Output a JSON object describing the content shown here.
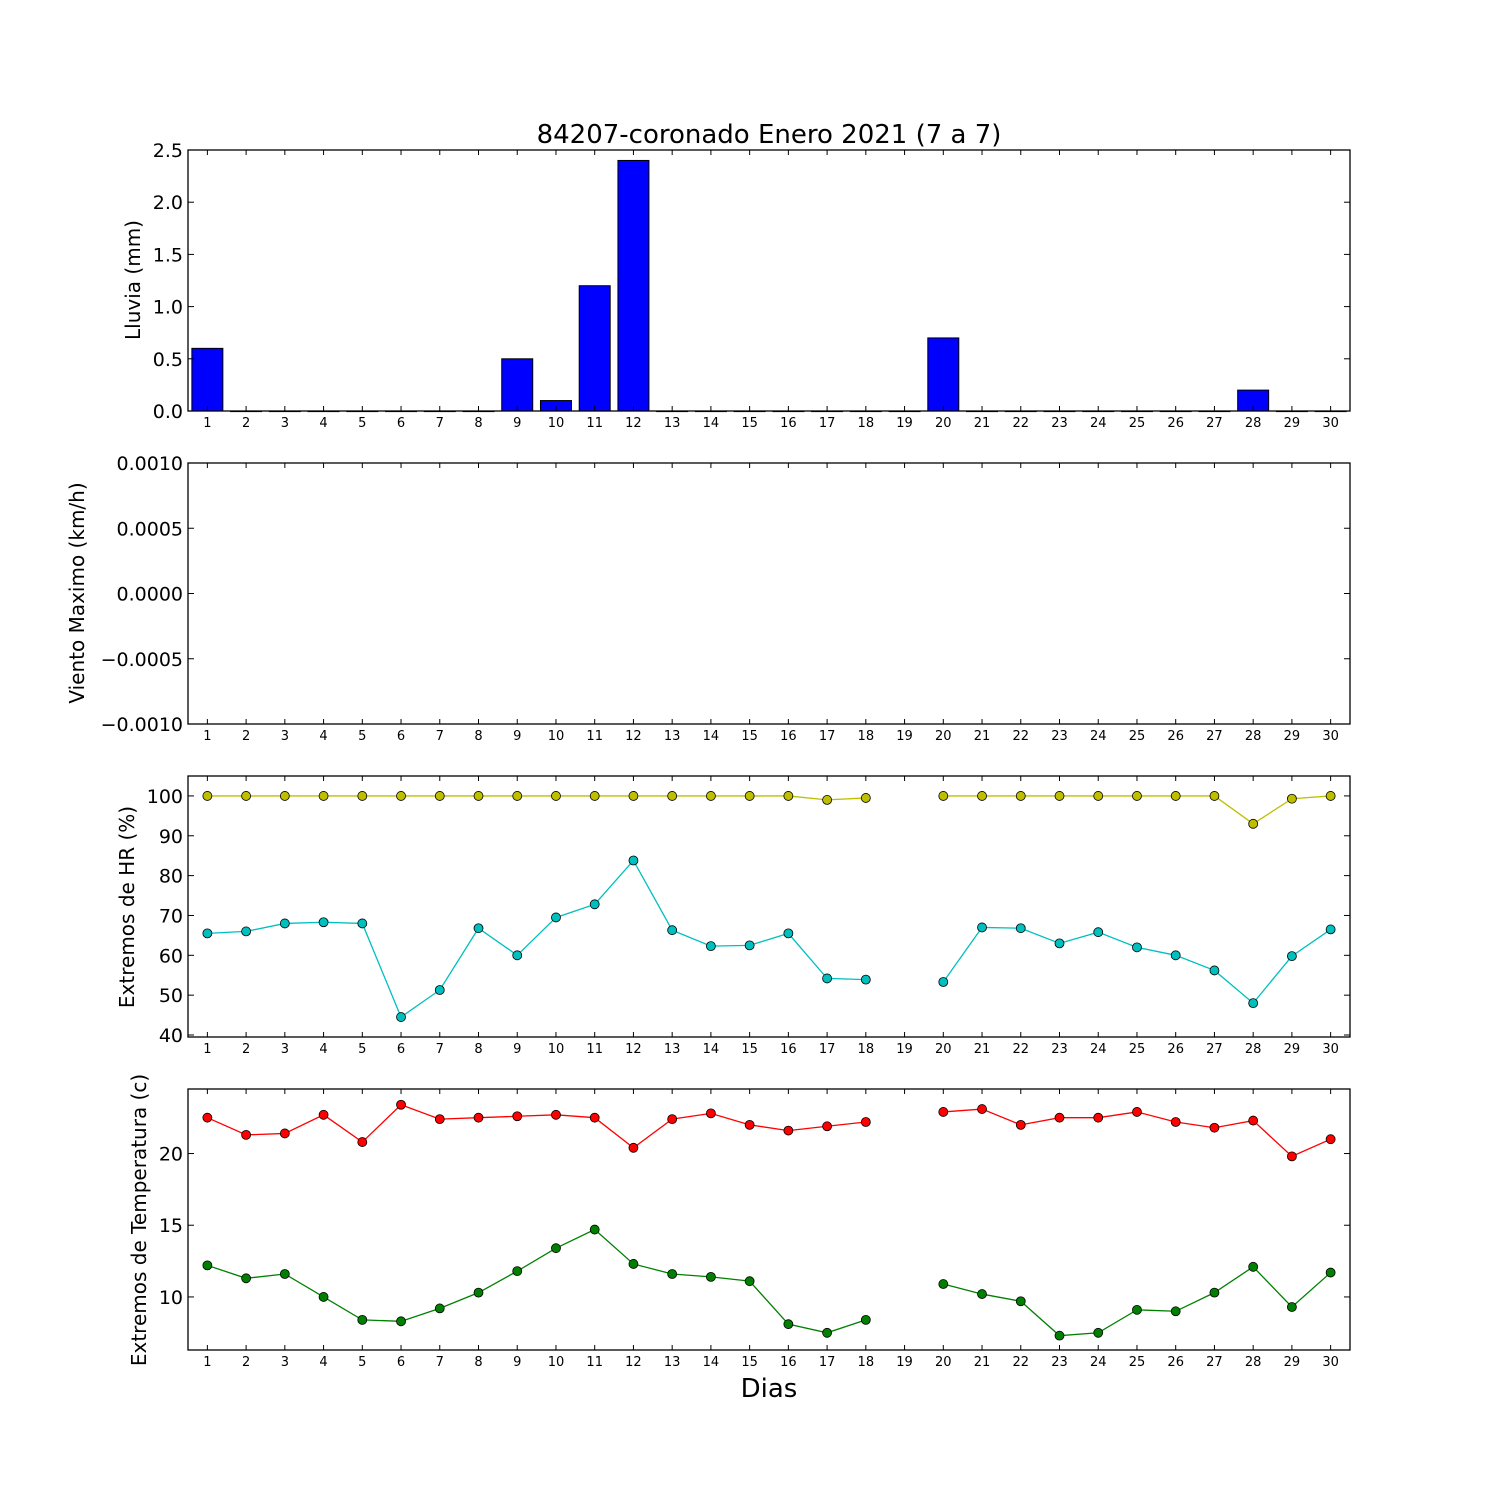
{
  "chart_data": [
    {
      "type": "bar",
      "title": "84207-coronado Enero 2021  (7 a 7)",
      "xlabel": "",
      "ylabel": "Lluvia (mm)",
      "categories": [
        "1",
        "2",
        "3",
        "4",
        "5",
        "6",
        "7",
        "8",
        "9",
        "10",
        "11",
        "12",
        "13",
        "14",
        "15",
        "16",
        "17",
        "18",
        "19",
        "20",
        "21",
        "22",
        "23",
        "24",
        "25",
        "26",
        "27",
        "28",
        "29",
        "30"
      ],
      "values": [
        0.6,
        0,
        0,
        0,
        0,
        0,
        0,
        0,
        0.5,
        0.1,
        1.2,
        2.4,
        0,
        0,
        0,
        0,
        0,
        0,
        0,
        0.7,
        0,
        0,
        0,
        0,
        0,
        0,
        0,
        0.2,
        0,
        0
      ],
      "ylim": [
        0,
        2.5
      ],
      "yticks": [
        "0.0",
        "0.5",
        "1.0",
        "1.5",
        "2.0",
        "2.5"
      ],
      "color": "#0000ff",
      "grid": false
    },
    {
      "type": "line",
      "title": "",
      "xlabel": "",
      "ylabel": "Viento Maximo (km/h)",
      "categories": [
        "1",
        "2",
        "3",
        "4",
        "5",
        "6",
        "7",
        "8",
        "9",
        "10",
        "11",
        "12",
        "13",
        "14",
        "15",
        "16",
        "17",
        "18",
        "19",
        "20",
        "21",
        "22",
        "23",
        "24",
        "25",
        "26",
        "27",
        "28",
        "29",
        "30"
      ],
      "series": [],
      "ylim": [
        -0.001,
        0.001
      ],
      "yticks": [
        "−0.0010",
        "−0.0005",
        "0.0000",
        "0.0005",
        "0.0010"
      ],
      "grid": false
    },
    {
      "type": "line",
      "title": "",
      "xlabel": "",
      "ylabel": "Extremos de HR (%)",
      "categories": [
        "1",
        "2",
        "3",
        "4",
        "5",
        "6",
        "7",
        "8",
        "9",
        "10",
        "11",
        "12",
        "13",
        "14",
        "15",
        "16",
        "17",
        "18",
        "19",
        "20",
        "21",
        "22",
        "23",
        "24",
        "25",
        "26",
        "27",
        "28",
        "29",
        "30"
      ],
      "series": [
        {
          "color": "#bfbf00",
          "values": [
            100,
            100,
            100,
            100,
            100,
            100,
            100,
            100,
            100,
            100,
            100,
            100,
            100,
            100,
            100,
            100,
            99,
            99.5,
            null,
            100,
            100,
            100,
            100,
            100,
            100,
            100,
            100,
            93,
            99.3,
            100
          ]
        },
        {
          "color": "#00bfbf",
          "values": [
            65.5,
            66,
            68,
            68.3,
            68,
            44.5,
            51.3,
            66.8,
            60,
            69.5,
            72.8,
            83.8,
            66.3,
            62.3,
            62.5,
            65.5,
            54.2,
            53.9,
            null,
            53.3,
            67,
            66.8,
            63,
            65.8,
            62,
            60,
            56.2,
            48,
            59.8,
            66.5
          ]
        }
      ],
      "ylim": [
        39.5,
        105
      ],
      "yticks": [
        "40",
        "50",
        "60",
        "70",
        "80",
        "90",
        "100"
      ],
      "grid": false
    },
    {
      "type": "line",
      "title": "",
      "xlabel": "Dias",
      "ylabel": "Extremos de Temperatura (c)",
      "categories": [
        "1",
        "2",
        "3",
        "4",
        "5",
        "6",
        "7",
        "8",
        "9",
        "10",
        "11",
        "12",
        "13",
        "14",
        "15",
        "16",
        "17",
        "18",
        "19",
        "20",
        "21",
        "22",
        "23",
        "24",
        "25",
        "26",
        "27",
        "28",
        "29",
        "30"
      ],
      "series": [
        {
          "color": "#ff0000",
          "values": [
            22.5,
            21.3,
            21.4,
            22.7,
            20.8,
            23.4,
            22.4,
            22.5,
            22.6,
            22.7,
            22.5,
            20.4,
            22.4,
            22.8,
            22.0,
            21.6,
            21.9,
            22.2,
            null,
            22.9,
            23.1,
            22.0,
            22.5,
            22.5,
            22.9,
            22.2,
            21.8,
            22.3,
            19.8,
            21.0
          ]
        },
        {
          "color": "#008000",
          "values": [
            12.2,
            11.3,
            11.6,
            10.0,
            8.4,
            8.3,
            9.2,
            10.3,
            11.8,
            13.4,
            14.7,
            12.3,
            11.6,
            11.4,
            11.1,
            8.1,
            7.5,
            8.4,
            null,
            10.9,
            10.2,
            9.7,
            7.3,
            7.5,
            9.1,
            9.0,
            10.3,
            12.1,
            9.3,
            11.7
          ]
        }
      ],
      "ylim": [
        6.3,
        24.5
      ],
      "yticks": [
        "10",
        "15",
        "20"
      ],
      "grid": false
    }
  ]
}
